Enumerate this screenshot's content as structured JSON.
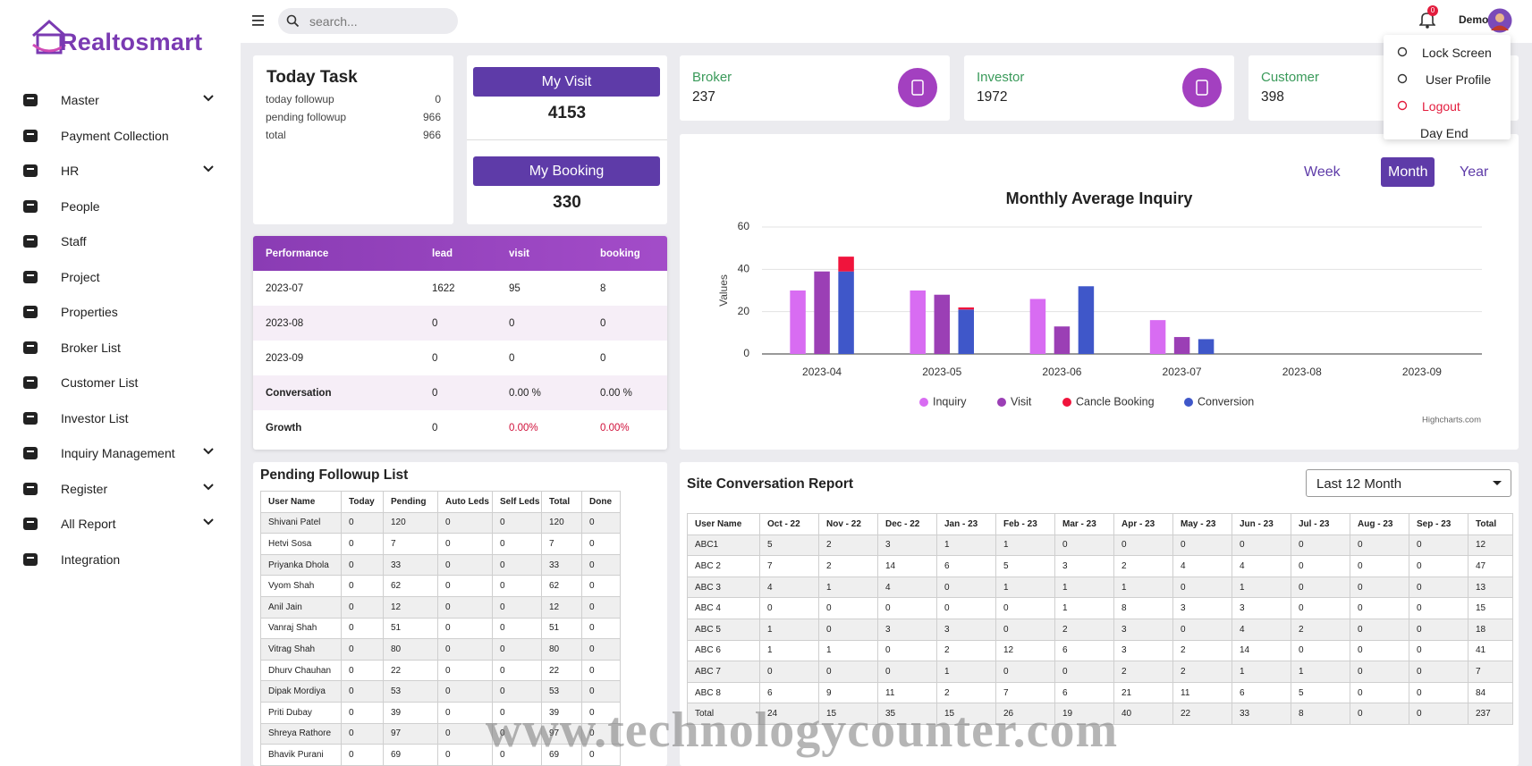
{
  "brand": "Realtosmart",
  "sidebar": {
    "items": [
      {
        "label": "Master",
        "submenu": true
      },
      {
        "label": "Payment Collection",
        "submenu": false
      },
      {
        "label": "HR",
        "submenu": true
      },
      {
        "label": "People",
        "submenu": false
      },
      {
        "label": "Staff",
        "submenu": false
      },
      {
        "label": "Project",
        "submenu": false
      },
      {
        "label": "Properties",
        "submenu": false
      },
      {
        "label": "Broker List",
        "submenu": false
      },
      {
        "label": "Customer List",
        "submenu": false
      },
      {
        "label": "Investor List",
        "submenu": false
      },
      {
        "label": "Inquiry Management",
        "submenu": true
      },
      {
        "label": "Register",
        "submenu": true
      },
      {
        "label": "All Report",
        "submenu": true
      },
      {
        "label": "Integration",
        "submenu": false
      }
    ]
  },
  "topbar": {
    "search_placeholder": "search...",
    "notifications": 0,
    "user": "Demo"
  },
  "user_menu": [
    "Lock Screen",
    "User Profile",
    "Logout",
    "Day End"
  ],
  "today_task": {
    "title": "Today Task",
    "rows": [
      {
        "label": "today followup",
        "value": 0
      },
      {
        "label": "pending followup",
        "value": 966
      },
      {
        "label": "total",
        "value": 966
      }
    ]
  },
  "my_visit": {
    "label": "My Visit",
    "value": 4153
  },
  "my_booking": {
    "label": "My Booking",
    "value": 330
  },
  "stats": [
    {
      "label": "Broker",
      "value": 237
    },
    {
      "label": "Investor",
      "value": 1972
    },
    {
      "label": "Customer",
      "value": 398
    }
  ],
  "performance": {
    "headers": [
      "Performance",
      "lead",
      "visit",
      "booking"
    ],
    "rows": [
      [
        "2023-07",
        1622,
        95,
        8
      ],
      [
        "2023-08",
        0,
        0,
        0
      ],
      [
        "2023-09",
        0,
        0,
        0
      ],
      [
        "Conversation",
        0,
        "0.00 %",
        "0.00 %"
      ],
      [
        "Growth",
        0,
        "0.00%",
        "0.00%"
      ]
    ]
  },
  "periods": {
    "options": [
      "Week",
      "Month",
      "Year"
    ],
    "active": 1
  },
  "chart_data": {
    "type": "bar",
    "title": "Monthly Average Inquiry",
    "y_label": "Values",
    "credits": "Highcharts.com",
    "categories": [
      "2023-04",
      "2023-05",
      "2023-06",
      "2023-07",
      "2023-08",
      "2023-09"
    ],
    "series": [
      {
        "name": "Inquiry",
        "color": "#d86cf2",
        "values": [
          30,
          30,
          26,
          16,
          0,
          0
        ]
      },
      {
        "name": "Visit",
        "color": "#9b3fb5",
        "values": [
          39,
          28,
          13,
          8,
          0,
          0
        ]
      },
      {
        "name": "Cancle Booking",
        "color": "#f0143c",
        "values": [
          7,
          1,
          0,
          0,
          0,
          0
        ]
      },
      {
        "name": "Conversion",
        "color": "#3f57c9",
        "values": [
          39,
          21,
          32,
          7,
          0,
          0
        ]
      }
    ],
    "ylim": [
      0,
      60
    ],
    "yticks": [
      0,
      20,
      40,
      60
    ],
    "grid": true,
    "legend": "bottom"
  },
  "pending_followup": {
    "title": "Pending Followup List",
    "headers": [
      "User Name",
      "Today",
      "Pending",
      "Auto Leds",
      "Self Leds",
      "Total",
      "Done"
    ],
    "rows": [
      [
        "Shivani Patel",
        0,
        120,
        0,
        0,
        120,
        0
      ],
      [
        "Hetvi Sosa",
        0,
        7,
        0,
        0,
        7,
        0
      ],
      [
        "Priyanka Dhola",
        0,
        33,
        0,
        0,
        33,
        0
      ],
      [
        "Vyom Shah",
        0,
        62,
        0,
        0,
        62,
        0
      ],
      [
        "Anil Jain",
        0,
        12,
        0,
        0,
        12,
        0
      ],
      [
        "Vanraj Shah",
        0,
        51,
        0,
        0,
        51,
        0
      ],
      [
        "Vitrag Shah",
        0,
        80,
        0,
        0,
        80,
        0
      ],
      [
        "Dhurv Chauhan",
        0,
        22,
        0,
        0,
        22,
        0
      ],
      [
        "Dipak Mordiya",
        0,
        53,
        0,
        0,
        53,
        0
      ],
      [
        "Priti Dubay",
        0,
        39,
        0,
        0,
        39,
        0
      ],
      [
        "Shreya Rathore",
        0,
        97,
        0,
        0,
        97,
        0
      ],
      [
        "Bhavik Purani",
        0,
        69,
        0,
        0,
        69,
        0
      ]
    ]
  },
  "site_report": {
    "title": "Site Conversation Report",
    "filter": "Last 12 Month",
    "headers": [
      "User Name",
      "Oct - 22",
      "Nov - 22",
      "Dec - 22",
      "Jan - 23",
      "Feb - 23",
      "Mar - 23",
      "Apr - 23",
      "May - 23",
      "Jun - 23",
      "Jul - 23",
      "Aug - 23",
      "Sep - 23",
      "Total"
    ],
    "rows": [
      [
        "ABC1",
        5,
        2,
        3,
        1,
        1,
        0,
        0,
        0,
        0,
        0,
        0,
        0,
        12
      ],
      [
        "ABC 2",
        7,
        2,
        14,
        6,
        5,
        3,
        2,
        4,
        4,
        0,
        0,
        0,
        47
      ],
      [
        "ABC 3",
        4,
        1,
        4,
        0,
        1,
        1,
        1,
        0,
        1,
        0,
        0,
        0,
        13
      ],
      [
        "ABC 4",
        0,
        0,
        0,
        0,
        0,
        1,
        8,
        3,
        3,
        0,
        0,
        0,
        15
      ],
      [
        "ABC 5",
        1,
        0,
        3,
        3,
        0,
        2,
        3,
        0,
        4,
        2,
        0,
        0,
        18
      ],
      [
        "ABC 6",
        1,
        1,
        0,
        2,
        12,
        6,
        3,
        2,
        14,
        0,
        0,
        0,
        41
      ],
      [
        "ABC 7",
        0,
        0,
        0,
        1,
        0,
        0,
        2,
        2,
        1,
        1,
        0,
        0,
        7
      ],
      [
        "ABC 8",
        6,
        9,
        11,
        2,
        7,
        6,
        21,
        11,
        6,
        5,
        0,
        0,
        84
      ],
      [
        "Total",
        24,
        15,
        35,
        15,
        26,
        19,
        40,
        22,
        33,
        8,
        0,
        0,
        237
      ]
    ]
  },
  "watermark": "www.technologycounter.com"
}
